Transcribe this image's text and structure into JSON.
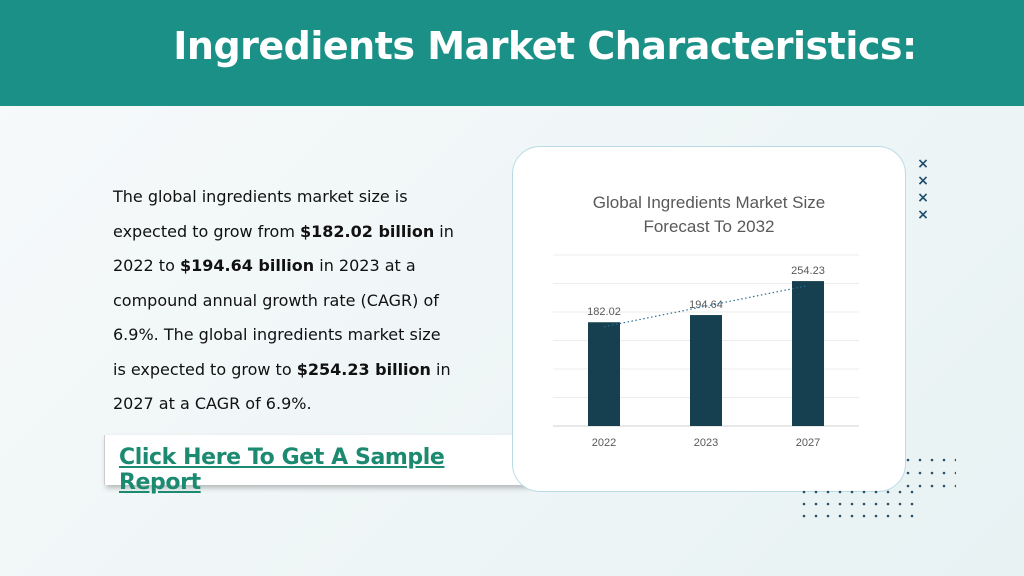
{
  "header": {
    "title": "Ingredients Market Characteristics:"
  },
  "body": {
    "p1": "The global ingredients market size is expected to grow from ",
    "b1": "$182.02 billion",
    "p2": " in 2022 to ",
    "b2": "$194.64 billion",
    "p3": " in 2023 at a compound annual growth rate (CAGR) of 6.9%. The global ingredients market size is expected to grow to ",
    "b3": "$254.23 billion",
    "p4": " in 2027 at a CAGR of 6.9%."
  },
  "cta": {
    "label": "Click Here To Get A Sample Report"
  },
  "decor": {
    "x_mark": "×"
  },
  "colors": {
    "header_bg": "#1b9086",
    "bar": "#163f4f",
    "trendline": "#2e6f95",
    "cta_text": "#1b8a70"
  },
  "chart_data": {
    "type": "bar",
    "title_line1": "Global Ingredients Market Size",
    "title_line2": "Forecast To 2032",
    "categories": [
      "2022",
      "2023",
      "2027"
    ],
    "values": [
      182.02,
      194.64,
      254.23
    ],
    "data_labels": [
      "182.02",
      "194.64",
      "254.23"
    ],
    "ylim": [
      0,
      300
    ],
    "grid": true,
    "trendline": "linear-dotted",
    "xlabel": "",
    "ylabel": ""
  }
}
